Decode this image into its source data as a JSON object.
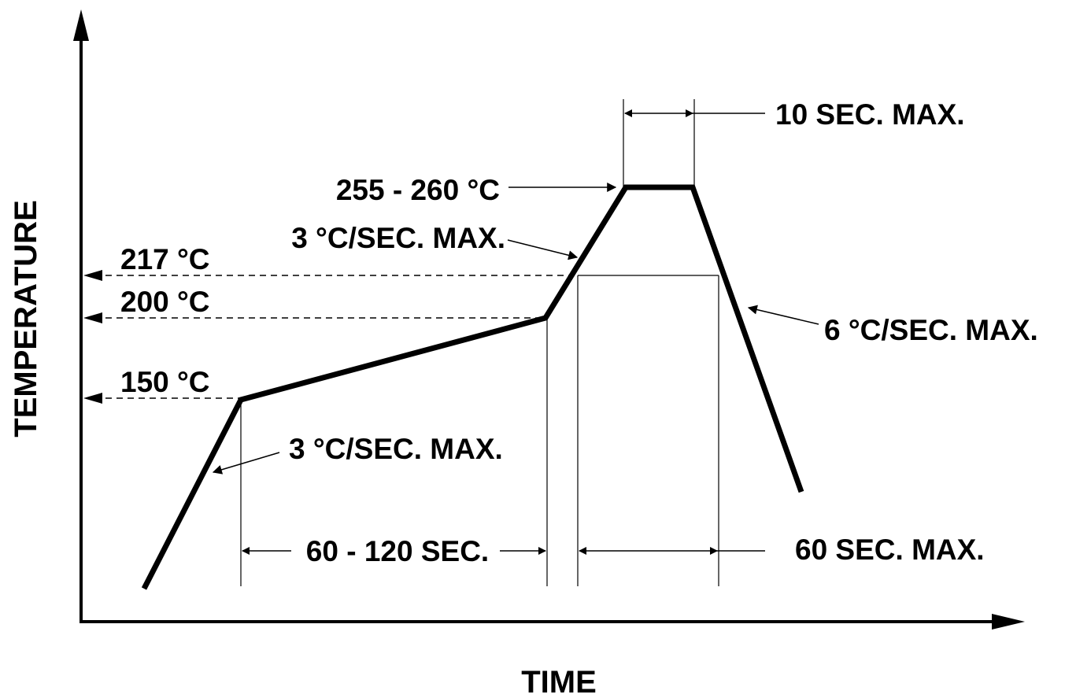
{
  "axes": {
    "x_label": "TIME",
    "y_label": "TEMPERATURE"
  },
  "temperature_labels": {
    "t217": "217 °C",
    "t200": "200 °C",
    "t150": "150 °C",
    "peak": "255 - 260 °C"
  },
  "rate_labels": {
    "ramp_up_1": "3 °C/SEC. MAX.",
    "ramp_up_2": "3 °C/SEC. MAX.",
    "ramp_down": "6 °C/SEC. MAX."
  },
  "duration_labels": {
    "soak": "60 - 120 SEC.",
    "above_liquidus": "60 SEC. MAX.",
    "peak": "10 SEC. MAX."
  },
  "colors": {
    "ink": "#000000",
    "background": "#ffffff"
  }
}
